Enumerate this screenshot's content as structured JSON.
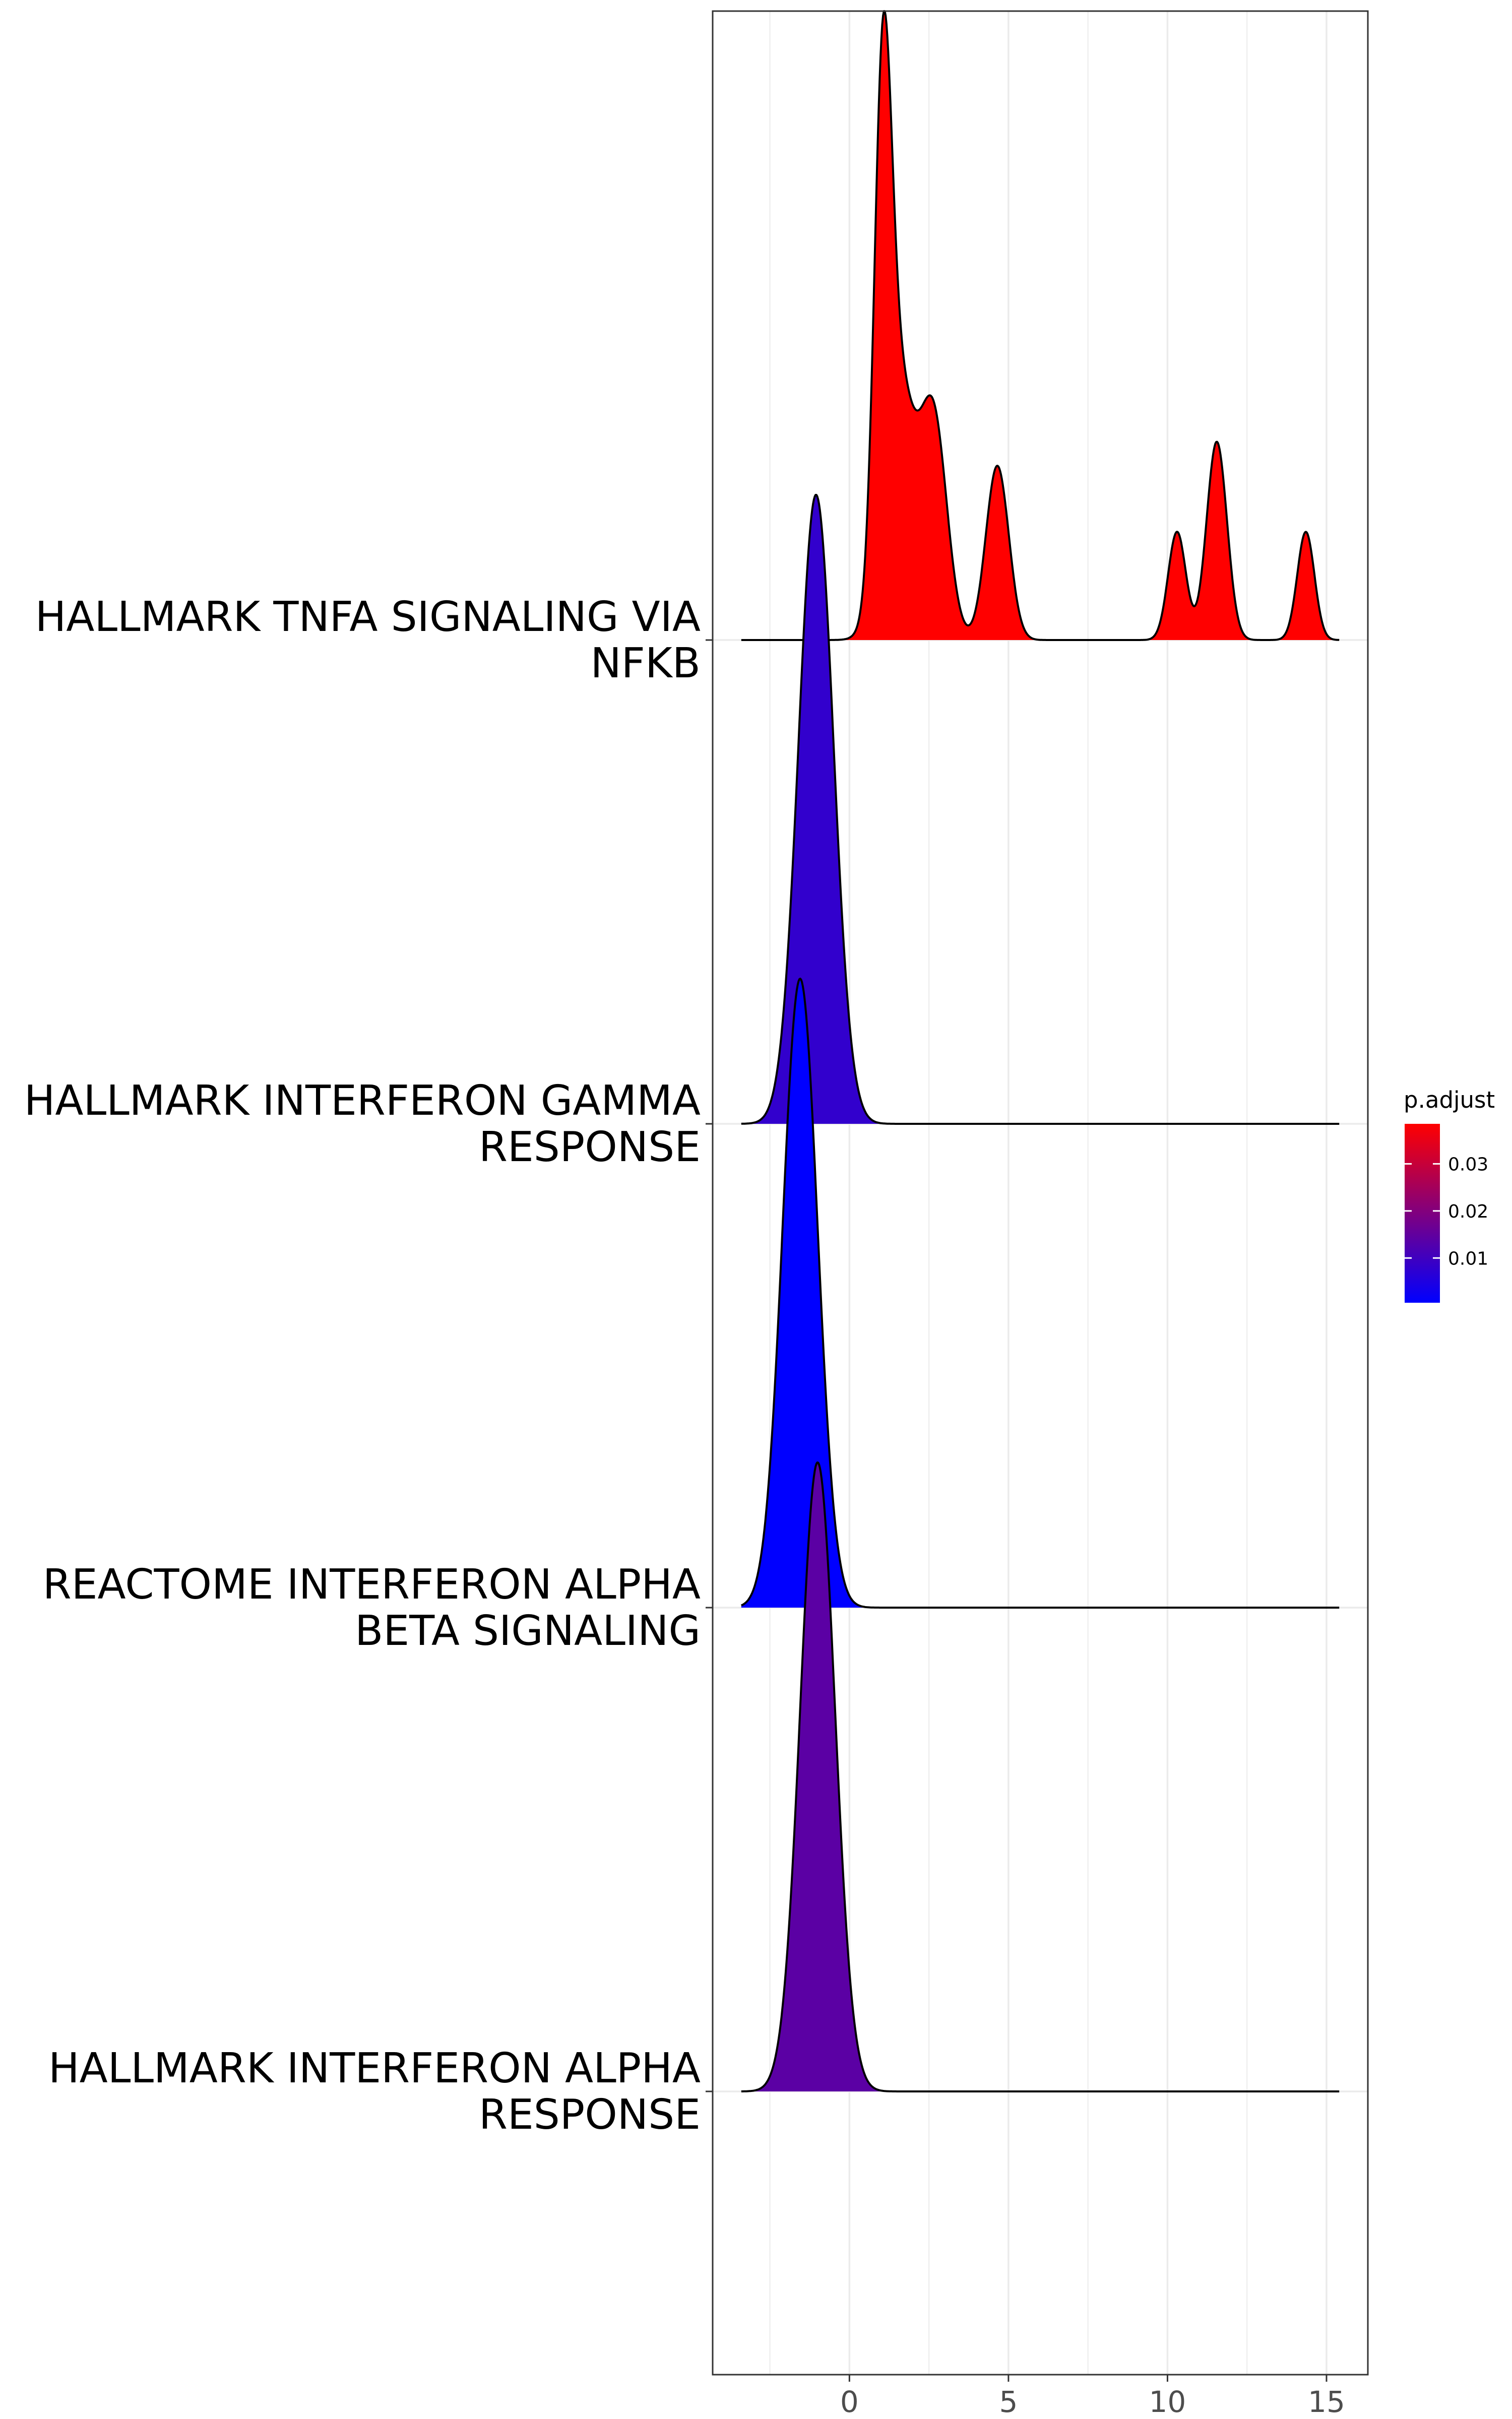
{
  "chart_data": {
    "type": "ridgeline",
    "xlabel": "",
    "ylabel": "",
    "xlim": [
      -4.3,
      16.3
    ],
    "x_ticks": [
      0,
      5,
      10,
      15
    ],
    "x_tick_labels": [
      "0",
      "5",
      "10",
      "15"
    ],
    "grid": true,
    "ridge_scale_units": 1.3,
    "colors": {
      "low_p": "#ff0000",
      "high_p": "#0000ff"
    },
    "legend": {
      "title": "p.adjust",
      "placement": "right",
      "range": [
        0.0005,
        0.0385
      ],
      "ticks": [
        0.01,
        0.02,
        0.03
      ],
      "tick_labels": [
        "0.01",
        "0.02",
        "0.03"
      ]
    },
    "series": [
      {
        "name": "HALLMARK TNFA SIGNALING VIA NFKB",
        "label_lines": [
          "HALLMARK TNFA SIGNALING VIA",
          "NFKB"
        ],
        "p_adjust": 0.0005,
        "x_range": [
          -3.4,
          15.4
        ],
        "components": [
          {
            "mu": 1.05,
            "sigma": 0.27,
            "w": 0.78
          },
          {
            "mu": 1.55,
            "sigma": 0.5,
            "w": 0.42
          },
          {
            "mu": 2.65,
            "sigma": 0.42,
            "w": 0.36
          },
          {
            "mu": 4.65,
            "sigma": 0.36,
            "w": 0.29
          },
          {
            "mu": 10.3,
            "sigma": 0.28,
            "w": 0.18
          },
          {
            "mu": 11.55,
            "sigma": 0.32,
            "w": 0.33
          },
          {
            "mu": 14.35,
            "sigma": 0.27,
            "w": 0.18
          }
        ]
      },
      {
        "name": "HALLMARK INTERFERON GAMMA RESPONSE",
        "label_lines": [
          "HALLMARK INTERFERON GAMMA",
          "RESPONSE"
        ],
        "p_adjust": 0.031,
        "x_range": [
          -3.4,
          15.4
        ],
        "components": [
          {
            "mu": -1.05,
            "sigma": 0.55,
            "w": 1.0
          }
        ]
      },
      {
        "name": "REACTOME INTERFERON ALPHA BETA SIGNALING",
        "label_lines": [
          "REACTOME INTERFERON ALPHA",
          "BETA SIGNALING"
        ],
        "p_adjust": 0.0385,
        "x_range": [
          -3.4,
          15.4
        ],
        "components": [
          {
            "mu": -1.55,
            "sigma": 0.55,
            "w": 1.0
          }
        ]
      },
      {
        "name": "HALLMARK INTERFERON ALPHA RESPONSE",
        "label_lines": [
          "HALLMARK INTERFERON ALPHA",
          "RESPONSE"
        ],
        "p_adjust": 0.025,
        "x_range": [
          -3.4,
          15.4
        ],
        "components": [
          {
            "mu": -1.0,
            "sigma": 0.55,
            "w": 1.0
          }
        ]
      }
    ]
  }
}
